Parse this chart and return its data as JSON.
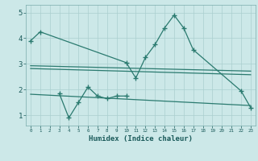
{
  "main_line_x": [
    0,
    1,
    10,
    11,
    12,
    13,
    14,
    15,
    16,
    17,
    22,
    23
  ],
  "main_line_y": [
    3.9,
    4.25,
    3.05,
    2.45,
    3.25,
    3.75,
    4.4,
    4.9,
    4.4,
    3.55,
    1.95,
    1.3
  ],
  "zigzag_x": [
    3,
    4,
    5,
    6,
    7,
    8,
    9,
    10
  ],
  "zigzag_y": [
    1.85,
    0.9,
    1.5,
    2.1,
    1.75,
    1.65,
    1.75,
    1.75
  ],
  "trend1_x": [
    0,
    23
  ],
  "trend1_y": [
    2.93,
    2.72
  ],
  "trend2_x": [
    0,
    23
  ],
  "trend2_y": [
    2.82,
    2.58
  ],
  "trend3_x": [
    0,
    23
  ],
  "trend3_y": [
    1.82,
    1.38
  ],
  "xlabel": "Humidex (Indice chaleur)",
  "color": "#2a7a6f",
  "bg_color": "#cce8e8",
  "grid_color": "#aacfcf",
  "ylim": [
    0.6,
    5.3
  ],
  "xlim": [
    -0.5,
    23.5
  ]
}
